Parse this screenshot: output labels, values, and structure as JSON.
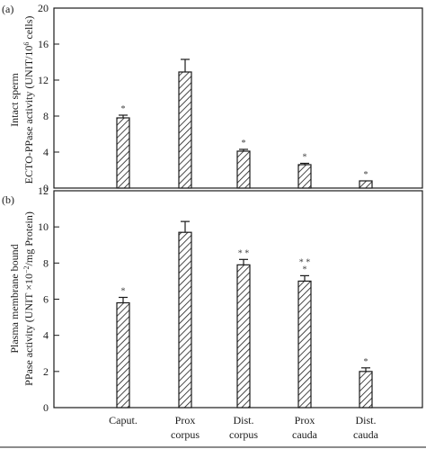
{
  "chart_data": [
    {
      "type": "bar",
      "panel_label": "(a)",
      "ylabel_line1": "Intact sperm",
      "ylabel_line2": "ECTO-PPase activity (UNIT/10",
      "ylabel_sup": "6",
      "ylabel_line2_end": " cells)",
      "ylim": [
        0,
        20
      ],
      "yticks": [
        "0",
        "4",
        "8",
        "12",
        "16",
        "20"
      ],
      "categories": [
        "Caput.",
        "Prox corpus",
        "Dist. corpus",
        "Prox cauda",
        "Dist. cauda"
      ],
      "values": [
        7.8,
        12.9,
        4.1,
        2.6,
        0.8
      ],
      "errors": [
        0.3,
        1.4,
        0.2,
        0.15,
        0
      ],
      "stars": [
        "*",
        "",
        "*",
        "*",
        "*"
      ],
      "bar_fill": "hatched",
      "grid": false
    },
    {
      "type": "bar",
      "panel_label": "(b)",
      "ylabel_line1": "Plasma membrane bound",
      "ylabel_line2": "PPase activity (UNIT ×10",
      "ylabel_sup": "−2",
      "ylabel_line2_end": "/mg Protein)",
      "ylim": [
        0,
        12
      ],
      "yticks": [
        "0",
        "2",
        "4",
        "6",
        "8",
        "10",
        "12"
      ],
      "categories": [
        "Caput.",
        "Prox corpus",
        "Dist. corpus",
        "Prox cauda",
        "Dist. cauda"
      ],
      "values": [
        5.8,
        9.7,
        7.9,
        7.0,
        2.0
      ],
      "errors": [
        0.3,
        0.6,
        0.3,
        0.3,
        0.2
      ],
      "stars": [
        "*",
        "",
        "* *",
        "* *\n*",
        "*"
      ],
      "bar_fill": "hatched",
      "grid": false
    }
  ],
  "xaxis": {
    "tick_labels": [
      [
        "Caput."
      ],
      [
        "Prox",
        "corpus"
      ],
      [
        "Dist.",
        "corpus"
      ],
      [
        "Prox",
        "cauda"
      ],
      [
        "Dist.",
        "cauda"
      ]
    ]
  },
  "colors": {
    "ink": "#1a1a1a",
    "star": "#444444",
    "background": "#ffffff"
  }
}
